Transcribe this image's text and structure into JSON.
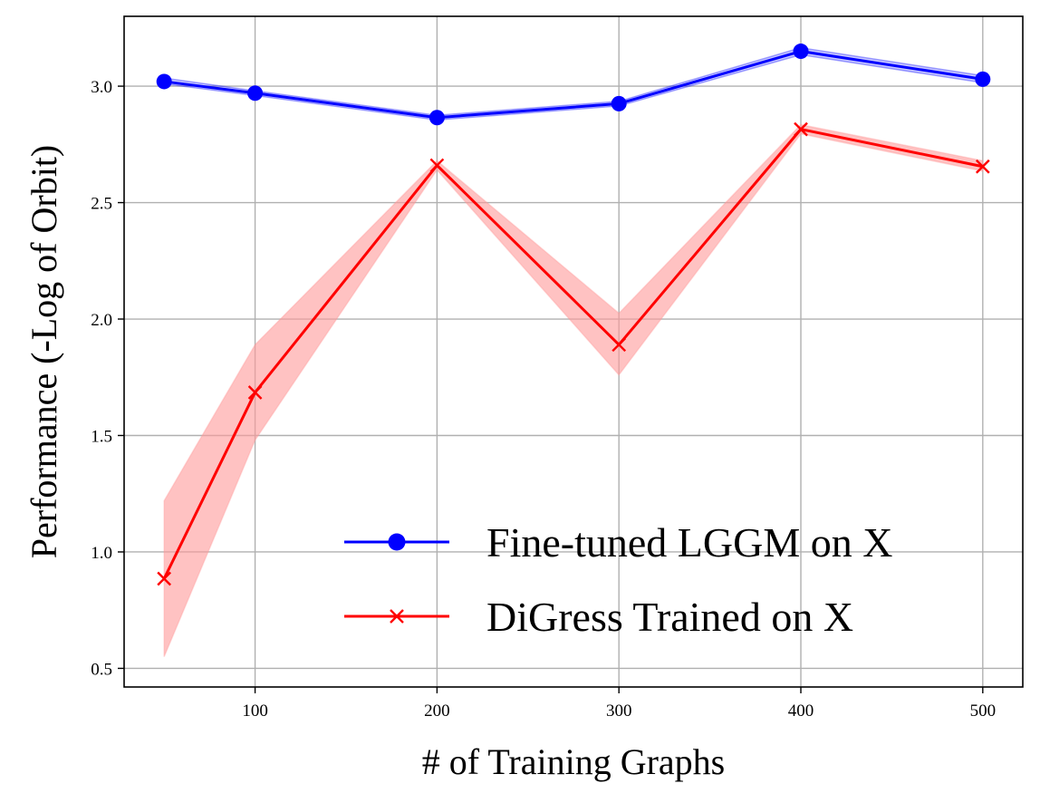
{
  "chart_data": {
    "type": "line",
    "xlabel": "# of Training Graphs",
    "ylabel": "Performance (-Log of Orbit)",
    "xlim": [
      28,
      522
    ],
    "ylim": [
      0.42,
      3.3
    ],
    "grid": true,
    "legend_position": "lower-right",
    "xticks": [
      100,
      200,
      300,
      400,
      500
    ],
    "yticks": [
      0.5,
      1.0,
      1.5,
      2.0,
      2.5,
      3.0
    ],
    "ytick_labels": [
      "0.5",
      "1.0",
      "1.5",
      "2.0",
      "2.5",
      "3.0"
    ],
    "x": [
      50,
      100,
      200,
      300,
      400,
      500
    ],
    "series": [
      {
        "name": "Fine-tuned LGGM on X",
        "color": "#0000ff",
        "marker": "circle",
        "values": [
          3.02,
          2.97,
          2.865,
          2.925,
          3.15,
          3.03
        ],
        "lower": [
          3.01,
          2.96,
          2.855,
          2.915,
          3.135,
          3.015
        ],
        "upper": [
          3.035,
          2.98,
          2.875,
          2.935,
          3.165,
          3.045
        ]
      },
      {
        "name": "DiGress Trained on X",
        "color": "#ff0000",
        "band_color": "#ff9999",
        "marker": "x",
        "values": [
          0.885,
          1.685,
          2.66,
          1.89,
          2.815,
          2.655
        ],
        "lower": [
          0.55,
          1.48,
          2.64,
          1.76,
          2.795,
          2.635
        ],
        "upper": [
          1.22,
          1.89,
          2.68,
          2.025,
          2.835,
          2.68
        ]
      }
    ]
  }
}
